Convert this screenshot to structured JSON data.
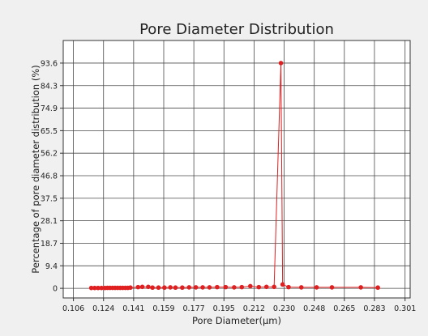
{
  "chart_data": {
    "type": "scatter",
    "title": "Pore Diameter Distribution",
    "xlabel": "Pore Diameter(μm)",
    "ylabel": "Percentage of pore diameter distribution (%)",
    "xlim": [
      0.1,
      0.304
    ],
    "ylim": [
      -4,
      103
    ],
    "xticks": [
      "0.106",
      "0.124",
      "0.141",
      "0.159",
      "0.177",
      "0.195",
      "0.212",
      "0.230",
      "0.248",
      "0.265",
      "0.283",
      "0.301"
    ],
    "xtick_values": [
      0.106,
      0.1237,
      0.1414,
      0.1591,
      0.1768,
      0.1945,
      0.2122,
      0.2299,
      0.2476,
      0.2653,
      0.283,
      0.301
    ],
    "yticks": [
      "0",
      "9.4",
      "18.7",
      "28.1",
      "37.5",
      "46.8",
      "56.2",
      "65.5",
      "74.9",
      "84.3",
      "93.6"
    ],
    "ytick_values": [
      0,
      9.36,
      18.72,
      28.08,
      37.44,
      46.8,
      56.16,
      65.52,
      74.88,
      84.24,
      93.6
    ],
    "grid": true,
    "series": [
      {
        "color": "#e02020",
        "x": [
          0.1165,
          0.1185,
          0.1205,
          0.1225,
          0.1245,
          0.126,
          0.1275,
          0.129,
          0.1305,
          0.132,
          0.1335,
          0.135,
          0.1365,
          0.138,
          0.1395,
          0.144,
          0.1465,
          0.15,
          0.1525,
          0.156,
          0.1595,
          0.163,
          0.166,
          0.17,
          0.174,
          0.178,
          0.182,
          0.186,
          0.1905,
          0.1955,
          0.2005,
          0.205,
          0.21,
          0.215,
          0.2195,
          0.224,
          0.228,
          0.229,
          0.2325,
          0.24,
          0.249,
          0.258,
          0.275,
          0.285
        ],
        "y": [
          0.15,
          0.15,
          0.15,
          0.15,
          0.15,
          0.2,
          0.2,
          0.2,
          0.2,
          0.2,
          0.2,
          0.2,
          0.2,
          0.2,
          0.3,
          0.5,
          0.6,
          0.6,
          0.3,
          0.3,
          0.3,
          0.4,
          0.3,
          0.3,
          0.4,
          0.4,
          0.4,
          0.4,
          0.5,
          0.5,
          0.4,
          0.5,
          0.9,
          0.5,
          0.6,
          0.6,
          93.6,
          1.6,
          0.5,
          0.4,
          0.4,
          0.4,
          0.4,
          0.3
        ]
      }
    ]
  }
}
